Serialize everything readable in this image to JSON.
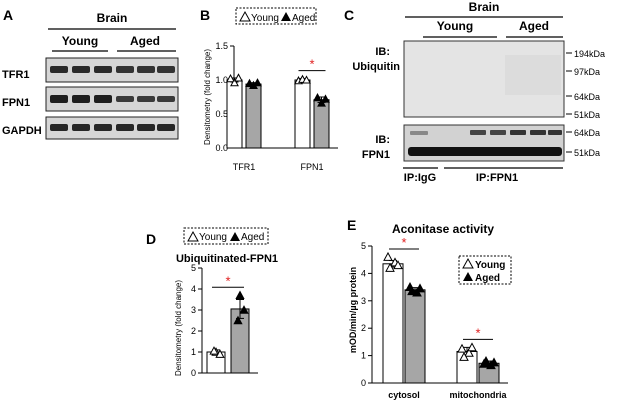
{
  "panel_a": {
    "letter": "A",
    "tissue": "Brain",
    "groups": [
      "Young",
      "Aged"
    ],
    "rows": [
      "TFR1",
      "FPN1",
      "GAPDH"
    ]
  },
  "panel_b": {
    "letter": "B",
    "legend": [
      "Young",
      "Aged"
    ],
    "ylabel": "Densitometry (fold change)",
    "yticks": [
      "0.0",
      "0.5",
      "1.0",
      "1.5"
    ],
    "sig": "*"
  },
  "panel_c": {
    "letter": "C",
    "tissue": "Brain",
    "groups": [
      "Young",
      "Aged"
    ],
    "ib_top": [
      "IB:",
      "Ubiquitin"
    ],
    "ib_bottom": [
      "IB:",
      "FPN1"
    ],
    "markers_top": [
      "194kDa",
      "97kDa",
      "64kDa",
      "51kDa"
    ],
    "markers_bottom": [
      "64kDa",
      "51kDa"
    ],
    "ip": [
      "IP:IgG",
      "IP:FPN1"
    ]
  },
  "panel_d": {
    "letter": "D",
    "legend": [
      "Young",
      "Aged"
    ],
    "title": "Ubiquitinated-FPN1",
    "ylabel": "Densitometry (fold change)",
    "yticks": [
      "0",
      "1",
      "2",
      "3",
      "4",
      "5"
    ],
    "sig": "*"
  },
  "panel_e": {
    "letter": "E",
    "title": "Aconitase activity",
    "legend": [
      "Young",
      "Aged"
    ],
    "ylabel": "mOD/min/µg protein",
    "yticks": [
      "0",
      "1",
      "2",
      "3",
      "4",
      "5"
    ],
    "sig": "*"
  },
  "chart_data": [
    {
      "panel": "B",
      "type": "bar",
      "categories": [
        "TFR1",
        "FPN1"
      ],
      "series": [
        {
          "name": "Young",
          "values": [
            1.0,
            1.0
          ],
          "error": [
            0.03,
            0.02
          ],
          "points": [
            [
              1.02,
              0.96,
              1.03
            ],
            [
              0.99,
              1.01,
              1.0
            ]
          ],
          "color": "#ffffff"
        },
        {
          "name": "Aged",
          "values": [
            0.94,
            0.71
          ],
          "error": [
            0.02,
            0.04
          ],
          "points": [
            [
              0.95,
              0.92,
              0.96
            ],
            [
              0.74,
              0.66,
              0.72
            ]
          ],
          "color": "#a6a6a6"
        }
      ],
      "ylabel": "Densitometry (fold change)",
      "ylim": [
        0,
        1.5
      ],
      "grid": false,
      "legend": "top"
    },
    {
      "panel": "D",
      "type": "bar",
      "categories": [
        ""
      ],
      "series": [
        {
          "name": "Young",
          "values": [
            1.0
          ],
          "error": [
            0.1
          ],
          "points": [
            [
              1.0,
              0.9,
              1.05
            ]
          ],
          "color": "#ffffff"
        },
        {
          "name": "Aged",
          "values": [
            3.05
          ],
          "error": [
            0.45
          ],
          "points": [
            [
              3.7,
              3.0,
              2.5
            ]
          ],
          "color": "#a6a6a6"
        }
      ],
      "title": "Ubiquitinated-FPN1",
      "ylabel": "Densitometry (fold change)",
      "ylim": [
        0,
        5
      ],
      "grid": false,
      "legend": "top"
    },
    {
      "panel": "E",
      "type": "bar",
      "categories": [
        "cytosol",
        "mitochondria"
      ],
      "series": [
        {
          "name": "Young",
          "values": [
            4.35,
            1.15
          ],
          "error": [
            0.12,
            0.15
          ],
          "points": [
            [
              4.6,
              4.4,
              4.2,
              4.3
            ],
            [
              1.25,
              1.1,
              0.95,
              1.3
            ]
          ],
          "color": "#ffffff"
        },
        {
          "name": "Aged",
          "values": [
            3.4,
            0.72
          ],
          "error": [
            0.08,
            0.08
          ],
          "points": [
            [
              3.5,
              3.3,
              3.35,
              3.45
            ],
            [
              0.7,
              0.65,
              0.8,
              0.75
            ]
          ],
          "color": "#a6a6a6"
        }
      ],
      "title": "Aconitase activity",
      "ylabel": "mOD/min/µg protein",
      "ylim": [
        0,
        5
      ],
      "grid": false,
      "legend": "right"
    }
  ]
}
